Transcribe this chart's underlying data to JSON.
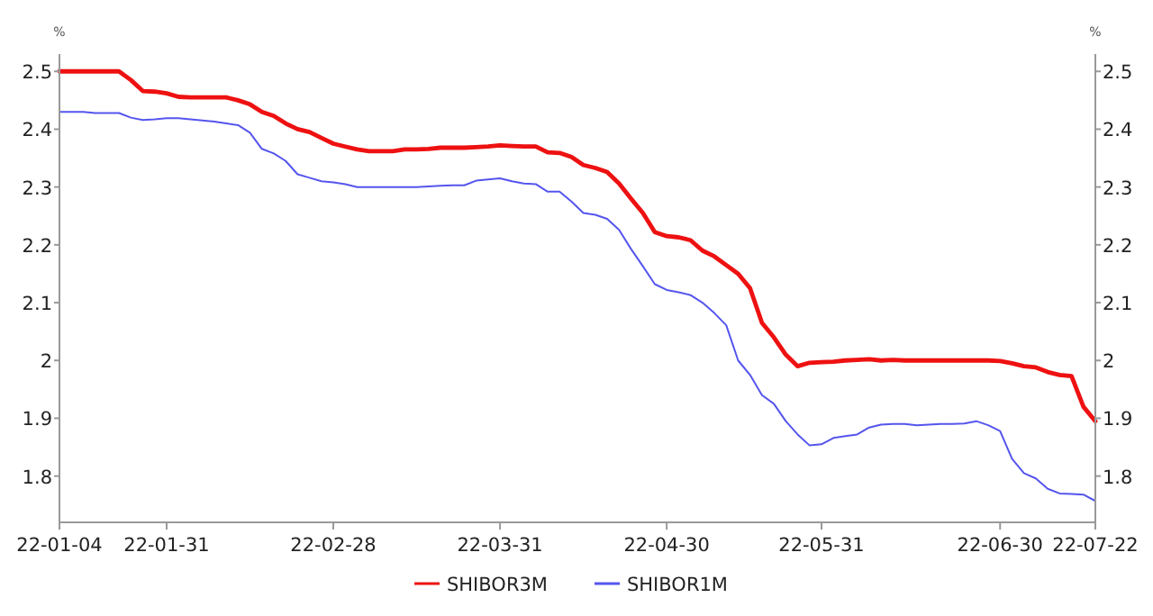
{
  "chart_data": {
    "type": "line",
    "ylabel": "%",
    "y2label": "%",
    "categories": [
      "22-01-04",
      null,
      null,
      null,
      null,
      null,
      null,
      null,
      null,
      "22-01-31",
      null,
      null,
      null,
      null,
      null,
      null,
      null,
      null,
      null,
      null,
      null,
      null,
      null,
      "22-02-28",
      null,
      null,
      null,
      null,
      null,
      null,
      null,
      null,
      null,
      null,
      null,
      null,
      null,
      "22-03-31",
      null,
      null,
      null,
      null,
      null,
      null,
      null,
      null,
      null,
      null,
      null,
      null,
      null,
      "22-04-30",
      null,
      null,
      null,
      null,
      null,
      null,
      null,
      null,
      null,
      null,
      null,
      null,
      "22-05-31",
      null,
      null,
      null,
      null,
      null,
      null,
      null,
      null,
      null,
      null,
      null,
      null,
      null,
      null,
      "22-06-30",
      null,
      null,
      null,
      null,
      null,
      null,
      null,
      "22-07-22"
    ],
    "series": [
      {
        "name": "SHIBOR3M",
        "color": "#ee1111",
        "values": [
          2.5,
          2.5,
          2.5,
          2.5,
          2.5,
          2.5,
          2.485,
          2.466,
          2.465,
          2.462,
          2.456,
          2.455,
          2.455,
          2.455,
          2.455,
          2.45,
          2.443,
          2.43,
          2.423,
          2.41,
          2.4,
          2.395,
          2.385,
          2.375,
          2.37,
          2.365,
          2.362,
          2.362,
          2.362,
          2.365,
          2.365,
          2.366,
          2.368,
          2.368,
          2.368,
          2.369,
          2.37,
          2.372,
          2.371,
          2.37,
          2.37,
          2.36,
          2.359,
          2.352,
          2.338,
          2.333,
          2.326,
          2.306,
          2.28,
          2.255,
          2.222,
          2.215,
          2.213,
          2.208,
          2.19,
          2.18,
          2.165,
          2.15,
          2.125,
          2.065,
          2.04,
          2.01,
          1.99,
          1.996,
          1.997,
          1.998,
          2.0,
          2.001,
          2.002,
          2.0,
          2.001,
          2.0,
          2.0,
          2.0,
          2.0,
          2.0,
          2.0,
          2.0,
          2.0,
          1.999,
          1.995,
          1.99,
          1.988,
          1.98,
          1.975,
          1.973,
          1.92,
          1.895
        ]
      },
      {
        "name": "SHIBOR1M",
        "color": "#5555ee",
        "values": [
          2.43,
          2.43,
          2.43,
          2.428,
          2.428,
          2.428,
          2.42,
          2.416,
          2.417,
          2.419,
          2.419,
          2.417,
          2.415,
          2.413,
          2.41,
          2.407,
          2.394,
          2.366,
          2.358,
          2.345,
          2.322,
          2.316,
          2.31,
          2.308,
          2.305,
          2.3,
          2.3,
          2.3,
          2.3,
          2.3,
          2.3,
          2.301,
          2.302,
          2.303,
          2.303,
          2.311,
          2.313,
          2.315,
          2.31,
          2.306,
          2.305,
          2.292,
          2.292,
          2.275,
          2.255,
          2.252,
          2.245,
          2.226,
          2.193,
          2.163,
          2.132,
          2.122,
          2.118,
          2.113,
          2.1,
          2.082,
          2.061,
          2.0,
          1.975,
          1.94,
          1.925,
          1.895,
          1.872,
          1.853,
          1.855,
          1.866,
          1.869,
          1.872,
          1.884,
          1.889,
          1.89,
          1.89,
          1.888,
          1.889,
          1.89,
          1.89,
          1.891,
          1.895,
          1.888,
          1.878,
          1.83,
          1.805,
          1.796,
          1.778,
          1.77,
          1.769,
          1.768,
          1.757
        ]
      }
    ],
    "ylim": [
      1.72,
      2.53
    ],
    "yticks": [
      1.8,
      1.9,
      2,
      2.1,
      2.2,
      2.3,
      2.4,
      2.5
    ],
    "y2lim": [
      1.72,
      2.53
    ],
    "y2ticks": [
      1.8,
      1.9,
      2,
      2.1,
      2.2,
      2.3,
      2.4,
      2.5
    ],
    "grid": false,
    "legend": "bottom"
  }
}
